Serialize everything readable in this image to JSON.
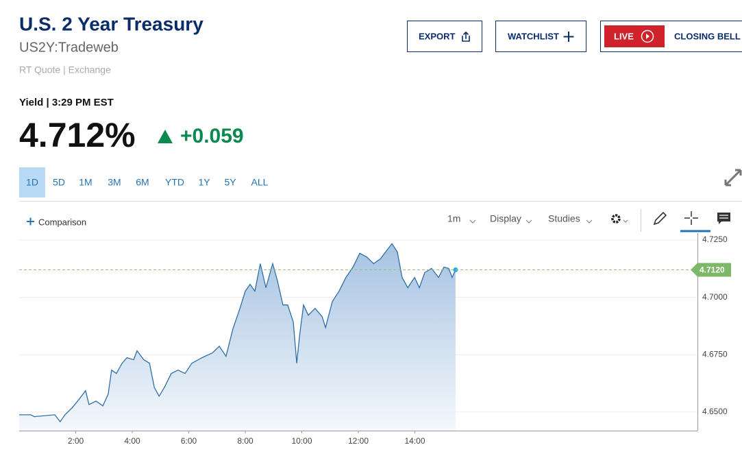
{
  "header": {
    "title": "U.S. 2 Year Treasury",
    "symbol": "US2Y:Tradeweb",
    "source": "RT Quote | Exchange"
  },
  "buttons": [
    "EXPORT",
    "WATCHLIST"
  ],
  "live": {
    "badge": "LIVE",
    "label": "CLOSING BELL"
  },
  "quote": {
    "label": "Yield | 3:29 PM EST",
    "price": "4.712%",
    "change": "+0.059"
  },
  "ranges": [
    "1D",
    "5D",
    "1M",
    "3M",
    "6M",
    "YTD",
    "1Y",
    "5Y",
    "ALL"
  ],
  "toolbar": {
    "comparison": "Comparison",
    "interval": "1m",
    "display": "Display",
    "studies": "Studies"
  },
  "chart_data": {
    "type": "area",
    "color": "#2e6ea6",
    "x": [
      0,
      0.41,
      0.53,
      1.26,
      1.45,
      1.62,
      1.87,
      2.11,
      2.35,
      2.47,
      2.72,
      2.96,
      3.15,
      3.27,
      3.44,
      3.64,
      3.81,
      4.05,
      4.17,
      4.41,
      4.61,
      4.78,
      4.95,
      5.14,
      5.38,
      5.62,
      5.87,
      6.11,
      6.47,
      6.84,
      7.08,
      7.32,
      7.56,
      7.81,
      8.0,
      8.17,
      8.34,
      8.53,
      8.73,
      8.97,
      9.14,
      9.33,
      9.5,
      9.7,
      9.82,
      9.92,
      10.06,
      10.23,
      10.47,
      10.72,
      10.84,
      11.08,
      11.32,
      11.56,
      11.81,
      12.05,
      12.29,
      12.54,
      12.78,
      13.02,
      13.19,
      13.38,
      13.55,
      13.75,
      13.99,
      14.16,
      14.35,
      14.59,
      14.84,
      15.03,
      15.2,
      15.32,
      15.44
    ],
    "values": [
      4.6488,
      4.6488,
      4.648,
      4.6488,
      4.6458,
      4.6488,
      4.6518,
      4.6554,
      4.6593,
      4.6533,
      4.6548,
      4.6527,
      4.6578,
      4.6683,
      4.6668,
      4.6713,
      4.6737,
      4.6728,
      4.6767,
      4.6728,
      4.6713,
      4.6608,
      4.6569,
      4.6608,
      4.6668,
      4.6683,
      4.6668,
      4.6713,
      4.6737,
      4.6758,
      4.6787,
      4.6743,
      4.6862,
      4.6952,
      4.7027,
      4.7057,
      4.7027,
      4.7147,
      4.7042,
      4.7147,
      4.7072,
      4.6967,
      4.6967,
      4.6892,
      4.6713,
      4.6832,
      4.6967,
      4.6922,
      4.6952,
      4.6916,
      4.6868,
      4.6982,
      4.7027,
      4.7087,
      4.7132,
      4.7192,
      4.7177,
      4.7147,
      4.7168,
      4.7207,
      4.7234,
      4.7198,
      4.7087,
      4.7042,
      4.7087,
      4.7042,
      4.7108,
      4.7126,
      4.7087,
      4.7132,
      4.7126,
      4.7087,
      4.712
    ],
    "xlim": [
      0,
      24
    ],
    "xticks": [
      {
        "value": 2,
        "label": "2:00"
      },
      {
        "value": 4,
        "label": "4:00"
      },
      {
        "value": 6,
        "label": "6:00"
      },
      {
        "value": 8,
        "label": "8:00"
      },
      {
        "value": 10,
        "label": "10:00"
      },
      {
        "value": 12,
        "label": "12:00"
      },
      {
        "value": 14,
        "label": "14:00"
      }
    ],
    "ylim": [
      4.6419,
      4.728
    ],
    "yticks": [
      {
        "value": 4.65,
        "label": "4.6500"
      },
      {
        "value": 4.675,
        "label": "4.6750"
      },
      {
        "value": 4.7,
        "label": "4.7000"
      },
      {
        "value": 4.725,
        "label": "4.7250"
      }
    ],
    "grid": true,
    "last_value": {
      "value": 4.712,
      "label": "4.7120"
    }
  }
}
